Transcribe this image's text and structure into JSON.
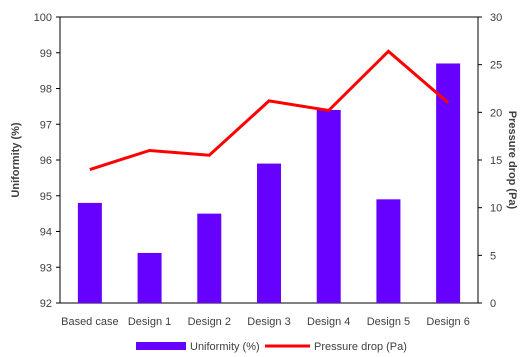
{
  "chart_data": {
    "type": "bar",
    "categories": [
      "Based case",
      "Design 1",
      "Design 2",
      "Design 3",
      "Design 4",
      "Design 5",
      "Design 6"
    ],
    "series": [
      {
        "name": "Uniformity (%)",
        "type": "bar",
        "axis": "left",
        "color": "#6600ff",
        "values": [
          94.8,
          93.4,
          94.5,
          95.9,
          97.4,
          94.9,
          98.7
        ]
      },
      {
        "name": "Pressure drop (Pa)",
        "type": "line",
        "axis": "right",
        "color": "#ff0000",
        "values": [
          14.0,
          16.0,
          15.5,
          21.2,
          20.2,
          26.4,
          21.0
        ]
      }
    ],
    "ylabel": "Uniformity (%)",
    "ylim": [
      92,
      100
    ],
    "yticks": [
      92,
      93,
      94,
      95,
      96,
      97,
      98,
      99,
      100
    ],
    "y2label": "Pressure drop (Pa)",
    "y2lim": [
      0,
      30
    ],
    "y2ticks": [
      0,
      5,
      10,
      15,
      20,
      25,
      30
    ],
    "grid": false,
    "legend": "bottom"
  }
}
